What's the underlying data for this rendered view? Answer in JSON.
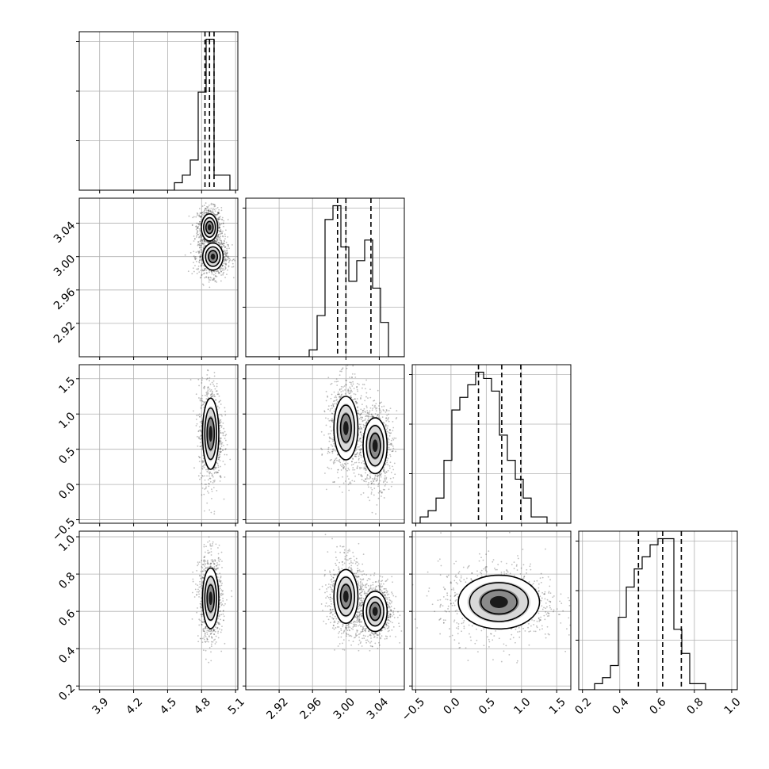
{
  "chart_data": {
    "type": "corner",
    "parameters": [
      {
        "range": [
          3.72,
          5.12
        ],
        "ticks": [
          3.9,
          4.2,
          4.5,
          4.8,
          5.1
        ],
        "tick_labels": [
          "3.9",
          "4.2",
          "4.5",
          "4.8",
          "5.1"
        ],
        "quantiles": [
          4.83,
          4.87,
          4.91
        ]
      },
      {
        "range": [
          2.88,
          3.07
        ],
        "ticks": [
          2.92,
          2.96,
          3.0,
          3.04
        ],
        "tick_labels": [
          "2.92",
          "2.96",
          "3.00",
          "3.04"
        ],
        "quantiles": [
          2.99,
          3.0,
          3.03
        ]
      },
      {
        "range": [
          -0.55,
          1.7
        ],
        "ticks": [
          -0.5,
          0.0,
          0.5,
          1.0,
          1.5
        ],
        "tick_labels": [
          "−0.5",
          "0.0",
          "0.5",
          "1.0",
          "1.5"
        ],
        "quantiles": [
          0.39,
          0.72,
          0.99
        ]
      },
      {
        "range": [
          0.18,
          1.03
        ],
        "ticks": [
          0.2,
          0.4,
          0.6,
          0.8,
          1.0
        ],
        "tick_labels": [
          "0.2",
          "0.4",
          "0.6",
          "0.8",
          "1.0"
        ],
        "quantiles": [
          0.5,
          0.63,
          0.73
        ]
      }
    ],
    "histograms": [
      {
        "edges_range": [
          3.72,
          5.12
        ],
        "bins": 20,
        "counts": [
          0,
          0,
          0,
          0,
          0,
          0,
          0,
          0,
          0,
          0,
          0,
          0,
          1,
          2,
          4,
          13,
          20,
          2,
          2,
          0
        ]
      },
      {
        "edges_range": [
          2.88,
          3.07
        ],
        "bins": 20,
        "counts": [
          0,
          0,
          0,
          0,
          0,
          0,
          0,
          0,
          1,
          6,
          20,
          22,
          16,
          11,
          14,
          17,
          10,
          5,
          0,
          0
        ]
      },
      {
        "edges_range": [
          -0.55,
          1.7
        ],
        "bins": 20,
        "counts": [
          0,
          1,
          2,
          4,
          10,
          18,
          20,
          22,
          24,
          23,
          21,
          14,
          10,
          7,
          4,
          1,
          1,
          0,
          0,
          0
        ]
      },
      {
        "edges_range": [
          0.18,
          1.03
        ],
        "bins": 20,
        "counts": [
          0,
          0,
          1,
          2,
          4,
          12,
          17,
          20,
          22,
          24,
          25,
          25,
          10,
          6,
          1,
          1,
          0,
          0,
          0,
          0
        ]
      }
    ],
    "modes_2d": [
      {
        "row": 1,
        "col": 0,
        "modes": [
          {
            "x": 4.87,
            "y": 3.035,
            "sx": 0.04,
            "sy": 0.009
          },
          {
            "x": 4.9,
            "y": 3.0,
            "sx": 0.05,
            "sy": 0.009
          }
        ]
      },
      {
        "row": 2,
        "col": 0,
        "modes": [
          {
            "x": 4.88,
            "y": 0.72,
            "sx": 0.04,
            "sy": 0.28
          }
        ]
      },
      {
        "row": 2,
        "col": 1,
        "modes": [
          {
            "x": 3.0,
            "y": 0.8,
            "sx": 0.008,
            "sy": 0.25
          },
          {
            "x": 3.035,
            "y": 0.55,
            "sx": 0.008,
            "sy": 0.22
          }
        ]
      },
      {
        "row": 3,
        "col": 0,
        "modes": [
          {
            "x": 4.88,
            "y": 0.67,
            "sx": 0.04,
            "sy": 0.09
          }
        ]
      },
      {
        "row": 3,
        "col": 1,
        "modes": [
          {
            "x": 3.0,
            "y": 0.68,
            "sx": 0.008,
            "sy": 0.08
          },
          {
            "x": 3.035,
            "y": 0.6,
            "sx": 0.008,
            "sy": 0.06
          }
        ]
      },
      {
        "row": 3,
        "col": 2,
        "modes": [
          {
            "x": 0.68,
            "y": 0.65,
            "sx": 0.32,
            "sy": 0.08
          }
        ]
      }
    ],
    "colors": {
      "ink": "#000000",
      "grid": "#b0b0b0",
      "point": "#000000"
    }
  }
}
